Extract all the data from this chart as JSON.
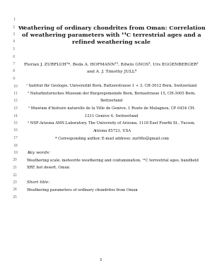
{
  "line_numbers": [
    1,
    2,
    3,
    4,
    5,
    6,
    7,
    8,
    9,
    10,
    11,
    12,
    13,
    14,
    15,
    16,
    17,
    18,
    19,
    20,
    21,
    22,
    23,
    24,
    25
  ],
  "title_line2": "Weathering of ordinary chondrites from Oman: Correlation",
  "title_line3": "of weathering parameters with ¹⁴C terrestrial ages and a",
  "title_line4": "refined weathering scale",
  "authors_line7": "Florian J. ZURFLUH¹*, Beda A. HOFMANN¹², Edwin GNOS³, Urs EGGENBERGER¹",
  "authors_line8": "and A. J. Timothy JULL⁴",
  "affil1": "¹ Institut für Geologie, Universität Bern, Baltzerstrasse 1 + 3, CH-3012 Bern, Switzerland",
  "affil2": "² Naturhistorisches Museum der Burgergemeinde Bern, Bernastrasse 15, CH-3005 Bern,",
  "affil2b": "Switzerland",
  "affil3": "³ Muséum d’histoire naturelle de la Ville de Genève, 1 Route de Malagnou, CP 6434 CH-",
  "affil3b": "1211 Genève 6, Switzerland",
  "affil4": "⁴ NSF-Arizona AMS Laboratory, The University of Arizona, 1118 East Fourth St., Tucson,",
  "affil4b": "Arizona 85721, USA",
  "corresponding": "* Corresponding author. E-mail address: zur0flo@gmail.com",
  "keywords_label": "Key words:",
  "keywords_text": "Weathering scale, meteorite weathering and contamination, ¹⁴C terrestrial ages, handheld",
  "keywords_text2": "XRF, hot desert, Oman",
  "short_title_label": "Short title:",
  "short_title_text": "Weathering parameters of ordinary chondrites from Oman",
  "page_number": "1",
  "bg_color": "#ffffff",
  "text_color": "#1a1a1a",
  "gray_color": "#777777",
  "title_fontsize": 5.8,
  "body_fontsize": 4.2,
  "affil_fontsize": 3.8,
  "linenum_fontsize": 4.0
}
